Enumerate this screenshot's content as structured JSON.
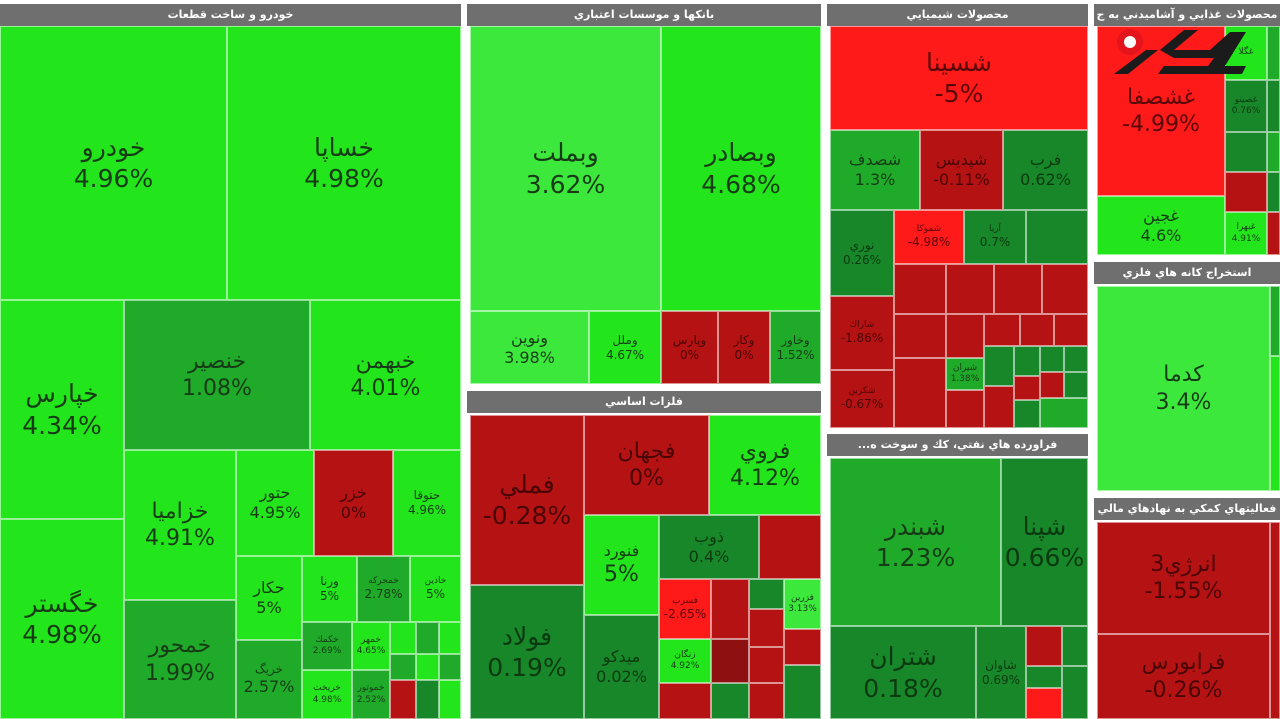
{
  "chart_data": {
    "type": "heatmap",
    "variant": "treemap",
    "colors": {
      "header": "#6f6f6f",
      "green_pale": "#3de83d",
      "green_bright": "#22e51b",
      "green_mid": "#1faa2a",
      "green_dark": "#17872a",
      "red_bright": "#ff1a1a",
      "red_dark": "#b51213",
      "red_deep": "#8f1010"
    },
    "sectors": [
      {
        "name": "خودرو و ساخت قطعات",
        "tiles": [
          {
            "symbol": "خودرو",
            "change": "4.96%",
            "color": "green_bright"
          },
          {
            "symbol": "خساپا",
            "change": "4.98%",
            "color": "green_bright"
          },
          {
            "symbol": "خپارس",
            "change": "4.34%",
            "color": "green_bright"
          },
          {
            "symbol": "خگستر",
            "change": "4.98%",
            "color": "green_bright"
          },
          {
            "symbol": "خنصير",
            "change": "1.08%",
            "color": "green_mid"
          },
          {
            "symbol": "خبهمن",
            "change": "4.01%",
            "color": "green_bright"
          },
          {
            "symbol": "خزاميا",
            "change": "4.91%",
            "color": "green_bright"
          },
          {
            "symbol": "خمحور",
            "change": "1.99%",
            "color": "green_mid"
          },
          {
            "symbol": "حتور",
            "change": "4.95%",
            "color": "green_bright"
          },
          {
            "symbol": "خزر",
            "change": "0%",
            "color": "red_dark"
          },
          {
            "symbol": "حتوقا",
            "change": "4.96%",
            "color": "green_bright"
          },
          {
            "symbol": "حكار",
            "change": "5%",
            "color": "green_bright"
          },
          {
            "symbol": "خريگ",
            "change": "2.57%",
            "color": "green_mid"
          },
          {
            "symbol": "ورنا",
            "change": "5%",
            "color": "green_bright"
          },
          {
            "symbol": "خمحركه",
            "change": "2.78%",
            "color": "green_mid"
          },
          {
            "symbol": "خاذين",
            "change": "5%",
            "color": "green_bright"
          },
          {
            "symbol": "خكمك",
            "change": "2.69%",
            "color": "green_mid"
          },
          {
            "symbol": "خمهر",
            "change": "4.65%",
            "color": "green_bright"
          },
          {
            "symbol": "خريخت",
            "change": "4.98%",
            "color": "green_bright"
          },
          {
            "symbol": "خموتور",
            "change": "2.52%",
            "color": "green_mid"
          }
        ]
      },
      {
        "name": "بانکها و موسسات اعتباري",
        "tiles": [
          {
            "symbol": "وبملت",
            "change": "3.62%",
            "color": "green_pale"
          },
          {
            "symbol": "وبصادر",
            "change": "4.68%",
            "color": "green_bright"
          },
          {
            "symbol": "ونوين",
            "change": "3.98%",
            "color": "green_pale"
          },
          {
            "symbol": "وملل",
            "change": "4.67%",
            "color": "green_bright"
          },
          {
            "symbol": "وپارس",
            "change": "0%",
            "color": "red_dark"
          },
          {
            "symbol": "وكار",
            "change": "0%",
            "color": "red_dark"
          },
          {
            "symbol": "وخاور",
            "change": "1.52%",
            "color": "green_mid"
          }
        ]
      },
      {
        "name": "فلزات اساسي",
        "tiles": [
          {
            "symbol": "فملي",
            "change": "-0.28%",
            "color": "red_dark"
          },
          {
            "symbol": "فجهان",
            "change": "0%",
            "color": "red_dark"
          },
          {
            "symbol": "فروي",
            "change": "4.12%",
            "color": "green_bright"
          },
          {
            "symbol": "فنورد",
            "change": "5%",
            "color": "green_bright"
          },
          {
            "symbol": "فولاد",
            "change": "0.19%",
            "color": "green_dark"
          },
          {
            "symbol": "ميدكو",
            "change": "0.02%",
            "color": "green_dark"
          },
          {
            "symbol": "ذوب",
            "change": "0.4%",
            "color": "green_dark"
          },
          {
            "symbol": "فسرب",
            "change": "-2.65%",
            "color": "rbright"
          },
          {
            "symbol": "زنگان",
            "change": "4.92%",
            "color": "green_bright"
          },
          {
            "symbol": "فزرين",
            "change": "3.13%",
            "color": "green_pale"
          }
        ]
      },
      {
        "name": "محصولات شيميايي",
        "tiles": [
          {
            "symbol": "شسينا",
            "change": "-5%",
            "color": "red_bright"
          },
          {
            "symbol": "شصدف",
            "change": "1.3%",
            "color": "green_mid"
          },
          {
            "symbol": "شپديس",
            "change": "-0.11%",
            "color": "red_dark"
          },
          {
            "symbol": "فرب",
            "change": "0.62%",
            "color": "green_dark"
          },
          {
            "symbol": "نوري",
            "change": "0.26%",
            "color": "green_dark"
          },
          {
            "symbol": "شموكا",
            "change": "-4.98%",
            "color": "red_bright"
          },
          {
            "symbol": "آريا",
            "change": "0.7%",
            "color": "green_dark"
          },
          {
            "symbol": "شاراك",
            "change": "-1.86%",
            "color": "red_dark"
          },
          {
            "symbol": "شكربن",
            "change": "-0.67%",
            "color": "red_dark"
          },
          {
            "symbol": "شيران",
            "change": "1.38%",
            "color": "green_mid"
          }
        ]
      },
      {
        "name": "محصولات غذايي و آشاميدني به ج",
        "tiles": [
          {
            "symbol": "غشصفا",
            "change": "-4.99%",
            "color": "red_bright"
          },
          {
            "symbol": "غجين",
            "change": "4.6%",
            "color": "green_bright"
          },
          {
            "symbol": "غگلا",
            "change": "",
            "color": "green_bright"
          },
          {
            "symbol": "غصينو",
            "change": "0.76%",
            "color": "green_dark"
          },
          {
            "symbol": "غبهرا",
            "change": "4.91%",
            "color": "green_bright"
          }
        ]
      },
      {
        "name": "استخراج کانه هاي فلزي",
        "tiles": [
          {
            "symbol": "كدما",
            "change": "3.4%",
            "color": "green_pale"
          }
        ]
      },
      {
        "name": "فراورده هاي نفتي، كك و سوخت ه...",
        "tiles": [
          {
            "symbol": "شبندر",
            "change": "1.23%",
            "color": "green_mid"
          },
          {
            "symbol": "شپنا",
            "change": "0.66%",
            "color": "green_dark"
          },
          {
            "symbol": "شتران",
            "change": "0.18%",
            "color": "green_dark"
          },
          {
            "symbol": "شاوان",
            "change": "0.69%",
            "color": "green_dark"
          }
        ]
      },
      {
        "name": "فعاليتهاي کمکي به نهادهاي مالي",
        "tiles": [
          {
            "symbol": "انرژي3",
            "change": "-1.55%",
            "color": "red_dark"
          },
          {
            "symbol": "فرابورس",
            "change": "-0.26%",
            "color": "red_dark"
          }
        ]
      }
    ]
  }
}
